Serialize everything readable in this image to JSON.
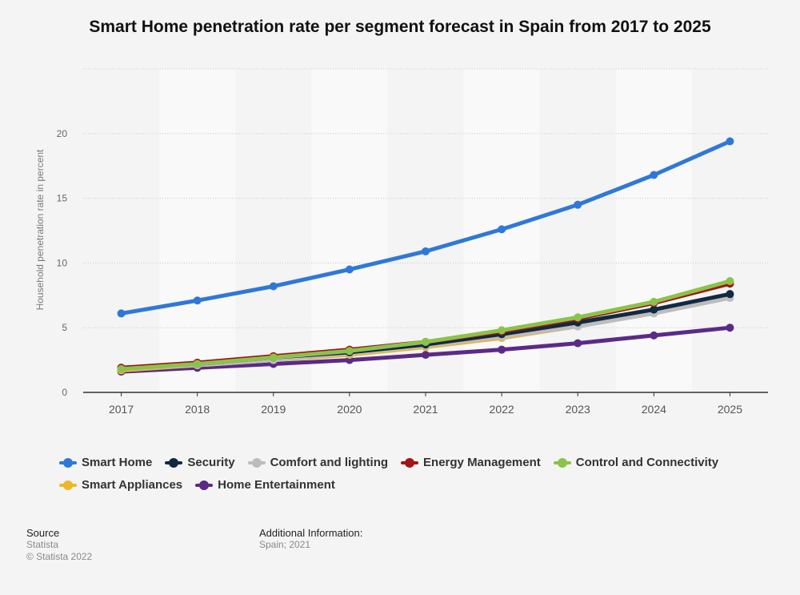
{
  "chart_data": {
    "type": "line",
    "title": "Smart Home penetration rate per segment forecast in Spain from 2017 to 2025",
    "xlabel": "",
    "ylabel": "Household penetration rate in percent",
    "categories": [
      "2017",
      "2018",
      "2019",
      "2020",
      "2021",
      "2022",
      "2023",
      "2024",
      "2025"
    ],
    "ylim": [
      0,
      25
    ],
    "yticks": [
      0,
      5,
      10,
      15,
      20
    ],
    "grid": true,
    "legend_position": "bottom",
    "series": [
      {
        "name": "Smart Home",
        "color": "#2f78d8",
        "values": [
          6.1,
          7.1,
          8.2,
          9.5,
          10.9,
          12.6,
          14.5,
          16.8,
          19.4
        ]
      },
      {
        "name": "Security",
        "color": "#102a43",
        "values": [
          1.9,
          2.2,
          2.7,
          3.1,
          3.7,
          4.5,
          5.4,
          6.4,
          7.6
        ]
      },
      {
        "name": "Comfort and lighting",
        "color": "#bdbdbd",
        "values": [
          1.8,
          2.1,
          2.5,
          3.0,
          3.6,
          4.3,
          5.1,
          6.1,
          7.3
        ]
      },
      {
        "name": "Energy Management",
        "color": "#a31515",
        "values": [
          1.9,
          2.3,
          2.8,
          3.3,
          3.9,
          4.7,
          5.7,
          6.9,
          8.4
        ]
      },
      {
        "name": "Control and Connectivity",
        "color": "#8bc34a",
        "values": [
          1.8,
          2.2,
          2.7,
          3.2,
          3.9,
          4.8,
          5.8,
          7.0,
          8.6
        ]
      },
      {
        "name": "Smart Appliances",
        "color": "#f0b528",
        "values": [
          1.7,
          2.1,
          2.5,
          2.9,
          3.5,
          4.2,
          5.1,
          6.2,
          7.5
        ]
      },
      {
        "name": "Home Entertainment",
        "color": "#5b2a86",
        "values": [
          1.6,
          1.9,
          2.2,
          2.5,
          2.9,
          3.3,
          3.8,
          4.4,
          5.0
        ]
      }
    ]
  },
  "footer": {
    "source_label": "Source",
    "source_lines": [
      "Statista",
      "© Statista 2022"
    ],
    "info_label": "Additional Information:",
    "info_lines": [
      "Spain; 2021"
    ]
  }
}
